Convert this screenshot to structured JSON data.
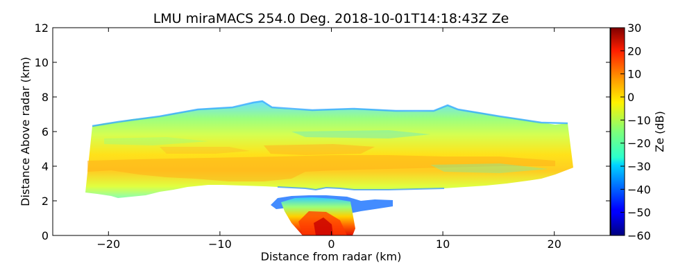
{
  "chart_data": {
    "type": "heatmap",
    "title": "LMU miraMACS 254.0 Deg. 2018-10-01T14:18:43Z  Ze",
    "xlabel": "Distance from radar (km)",
    "ylabel": "Distance Above radar  (km)",
    "xlim": [
      -25,
      25
    ],
    "ylim": [
      0,
      12
    ],
    "xticks": [
      -20,
      -10,
      0,
      10,
      20
    ],
    "xtick_labels": [
      "−20",
      "−10",
      "0",
      "10",
      "20"
    ],
    "yticks": [
      0,
      2,
      4,
      6,
      8,
      10,
      12
    ],
    "ytick_labels": [
      "0",
      "2",
      "4",
      "6",
      "8",
      "10",
      "12"
    ],
    "colorbar": {
      "label": "Ze (dB)",
      "colormap": "jet",
      "range": [
        -60,
        30
      ],
      "ticks": [
        30,
        20,
        10,
        0,
        -10,
        -20,
        -30,
        -40,
        -50,
        -60
      ],
      "tick_labels": [
        "30",
        "20",
        "10",
        "0",
        "−10",
        "−20",
        "−30",
        "−40",
        "−50",
        "−60"
      ]
    },
    "features": [
      {
        "name": "stratiform cloud layer",
        "x_range_km": [
          -22,
          21.8
        ],
        "height_range_km": [
          2.5,
          7.5
        ],
        "ze_range_db": [
          -25,
          5
        ]
      },
      {
        "name": "high-reflectivity band",
        "x_range_km": [
          -22,
          20
        ],
        "height_range_km": [
          3,
          4.5
        ],
        "ze_range_db": [
          -5,
          5
        ]
      },
      {
        "name": "low-level precipitation",
        "x_range_km": [
          -3,
          5.5
        ],
        "height_range_km": [
          0,
          2.4
        ],
        "ze_range_db": [
          -40,
          25
        ]
      }
    ]
  }
}
